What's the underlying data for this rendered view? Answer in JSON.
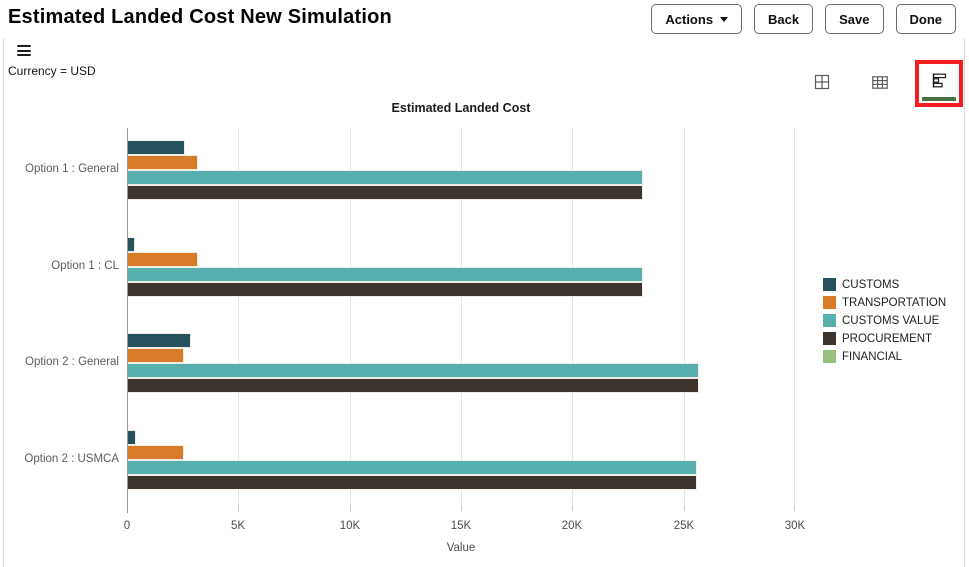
{
  "header": {
    "title": "Estimated Landed Cost New Simulation",
    "actions_label": "Actions",
    "back_label": "Back",
    "save_label": "Save",
    "done_label": "Done"
  },
  "toolbar": {
    "currency_label": "Currency = USD",
    "icons": [
      "menu-icon",
      "grid-view-icon",
      "table-view-icon",
      "bar-chart-view-icon"
    ],
    "selected_view": "bar-chart-view",
    "active_indicator_color": "#4d7040",
    "annotation_highlight_color": "#f21d1d"
  },
  "chart_data": {
    "type": "bar",
    "orientation": "horizontal",
    "title": "Estimated Landed Cost",
    "xlabel": "Value",
    "xlim": [
      0,
      30000
    ],
    "x_ticks": [
      "0",
      "5K",
      "10K",
      "15K",
      "20K",
      "25K",
      "30K"
    ],
    "grid": true,
    "legend_position": "right",
    "categories": [
      "Option 1 : General",
      "Option 1 : CL",
      "Option 2 : General",
      "Option 2 : USMCA"
    ],
    "series": [
      {
        "name": "CUSTOMS",
        "color": "#25525c",
        "values": [
          2500,
          250,
          2800,
          320
        ]
      },
      {
        "name": "TRANSPORTATION",
        "color": "#d87b26",
        "values": [
          3100,
          3100,
          2450,
          2450
        ]
      },
      {
        "name": "CUSTOMS VALUE",
        "color": "#58b0ae",
        "values": [
          23100,
          23100,
          25600,
          25500
        ]
      },
      {
        "name": "PROCUREMENT",
        "color": "#3d352d",
        "values": [
          23100,
          23100,
          25600,
          25500
        ]
      },
      {
        "name": "FINANCIAL",
        "color": "#96c07f",
        "values": [
          0,
          0,
          0,
          0
        ]
      }
    ]
  }
}
